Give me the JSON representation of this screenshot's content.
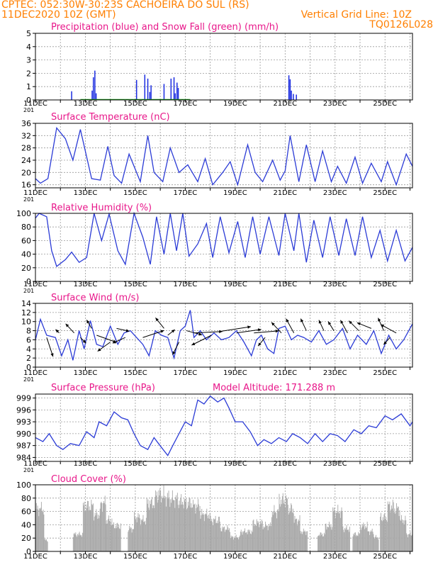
{
  "header": {
    "line1_left": "CPTEC:   052:30W-30:23S   CACHOEIRA DO SUL (RS)",
    "line2_left": "11DEC2020  10Z  (GMT)",
    "line2_right": "Vertical Grid Line: 10Z",
    "line3_right": "TQ0126L028",
    "color": "#ff7f00"
  },
  "colors": {
    "title": "#e8178a",
    "line": "#2b3bd6",
    "precip": "#1a2be0",
    "snow": "#19a319",
    "cloud": "#a8a8a8",
    "grid": "#9a9a9a",
    "arrow": "#000000"
  },
  "x_ticks": [
    "11DEC",
    "13DEC",
    "15DEC",
    "17DEC",
    "19DEC",
    "21DEC",
    "23DEC",
    "25DEC"
  ],
  "stub_label": "201",
  "chart_data": [
    {
      "type": "bar",
      "title": "Precipitation (blue) and Snow Fall (green) (mm/h)",
      "ylim": [
        0,
        5
      ],
      "yticks": [
        0,
        1,
        2,
        3,
        4,
        5
      ],
      "x_unit": "days since 11DEC 10Z",
      "series": [
        {
          "name": "Precipitation",
          "x": [
            1.45,
            2.27,
            2.32,
            2.38,
            2.43,
            4.05,
            4.38,
            4.5,
            4.58,
            4.63,
            5.15,
            5.43,
            5.55,
            5.6,
            5.67,
            5.72,
            10.15,
            10.2,
            10.25,
            10.33,
            10.45
          ],
          "values": [
            0.65,
            0.7,
            1.7,
            2.2,
            0.5,
            1.5,
            1.9,
            1.6,
            0.6,
            1.1,
            1.2,
            1.6,
            1.7,
            0.5,
            1.3,
            0.9,
            1.85,
            1.55,
            0.7,
            0.45,
            0.4
          ]
        },
        {
          "name": "Snow Fall",
          "values": []
        }
      ]
    },
    {
      "type": "line",
      "title": "Surface Temperature (nC)",
      "ylim": [
        15,
        36
      ],
      "yticks": [
        16,
        20,
        24,
        28,
        32,
        36
      ],
      "x": [
        0.0,
        0.2,
        0.5,
        0.85,
        1.2,
        1.5,
        1.8,
        2.25,
        2.6,
        2.9,
        3.15,
        3.45,
        3.75,
        4.2,
        4.5,
        4.75,
        5.1,
        5.4,
        5.75,
        6.1,
        6.5,
        6.8,
        7.1,
        7.5,
        7.8,
        8.1,
        8.5,
        8.8,
        9.1,
        9.5,
        9.8,
        10.0,
        10.2,
        10.55,
        10.85,
        11.2,
        11.5,
        11.85,
        12.1,
        12.45,
        12.8,
        13.1,
        13.45,
        13.85,
        14.1,
        14.45,
        14.85,
        15.1
      ],
      "values": [
        18,
        16.5,
        18,
        34.5,
        31,
        24,
        34,
        18,
        17.5,
        28.5,
        19,
        16.5,
        26,
        17,
        32,
        20,
        17,
        28,
        20,
        22.5,
        17,
        24.5,
        16,
        20,
        23.5,
        16,
        29,
        20,
        17,
        24,
        17.5,
        20.5,
        32,
        17,
        29,
        17,
        27,
        17,
        22,
        16.5,
        25,
        16.5,
        23,
        17,
        23.5,
        16,
        26,
        22
      ]
    },
    {
      "type": "line",
      "title": "Relative Humidity (%)",
      "ylim": [
        0,
        100
      ],
      "yticks": [
        0,
        20,
        40,
        60,
        80,
        100
      ],
      "x": [
        0.0,
        0.15,
        0.45,
        0.65,
        0.85,
        1.2,
        1.45,
        1.75,
        2.05,
        2.35,
        2.65,
        2.95,
        3.3,
        3.6,
        3.95,
        4.3,
        4.6,
        4.85,
        5.15,
        5.4,
        5.65,
        5.9,
        6.15,
        6.5,
        6.85,
        7.1,
        7.4,
        7.75,
        8.1,
        8.4,
        8.7,
        9.0,
        9.35,
        9.75,
        10.0,
        10.35,
        10.55,
        10.85,
        11.15,
        11.5,
        11.8,
        12.15,
        12.45,
        12.8,
        13.1,
        13.45,
        13.8,
        14.1,
        14.45,
        14.8,
        15.1
      ],
      "values": [
        93,
        100,
        95,
        45,
        22,
        32,
        43,
        28,
        35,
        100,
        60,
        99,
        45,
        25,
        100,
        65,
        25,
        95,
        40,
        100,
        45,
        100,
        37,
        55,
        85,
        35,
        95,
        42,
        88,
        35,
        95,
        40,
        95,
        38,
        100,
        45,
        100,
        28,
        90,
        35,
        95,
        38,
        92,
        38,
        95,
        35,
        75,
        30,
        75,
        30,
        50
      ]
    },
    {
      "type": "line",
      "title": "Surface Wind (m/s)",
      "ylim": [
        0,
        14
      ],
      "yticks": [
        0,
        2,
        4,
        6,
        8,
        10,
        12,
        14
      ],
      "x": [
        0.0,
        0.2,
        0.45,
        0.8,
        1.05,
        1.3,
        1.5,
        1.75,
        1.95,
        2.2,
        2.45,
        2.7,
        3.0,
        3.3,
        3.55,
        3.8,
        4.05,
        4.3,
        4.55,
        4.8,
        5.05,
        5.3,
        5.55,
        5.8,
        6.0,
        6.2,
        6.35,
        6.6,
        6.85,
        7.15,
        7.45,
        7.75,
        8.05,
        8.35,
        8.65,
        8.85,
        9.05,
        9.3,
        9.55,
        9.75,
        10.0,
        10.25,
        10.5,
        10.75,
        11.05,
        11.35,
        11.65,
        11.95,
        12.3,
        12.6,
        12.9,
        13.25,
        13.55,
        13.85,
        14.15,
        14.45,
        14.75,
        15.1
      ],
      "values": [
        6,
        10.5,
        7,
        6.5,
        2.5,
        6,
        1.5,
        8,
        4,
        10.2,
        5,
        4.5,
        9,
        5,
        7.5,
        8,
        6.5,
        5,
        2.5,
        8,
        7,
        6.5,
        2,
        8,
        9,
        12.5,
        6.5,
        8,
        6,
        7.5,
        6,
        6.5,
        8,
        5.5,
        2.5,
        6,
        7,
        4,
        3,
        8.5,
        9,
        6,
        7,
        6.5,
        5.5,
        8,
        5,
        6,
        8.5,
        4,
        7,
        5,
        8,
        3,
        7,
        4,
        6,
        9.5
      ],
      "arrows": [
        {
          "x": 0.45,
          "v": 6.5,
          "dx": 9,
          "dy": 27
        },
        {
          "x": 0.95,
          "v": 7.5,
          "dx": -5,
          "dy": -5
        },
        {
          "x": 1.55,
          "v": 7.5,
          "dx": -12,
          "dy": -13
        },
        {
          "x": 1.8,
          "v": 6.5,
          "dx": 8,
          "dy": 8
        },
        {
          "x": 2.25,
          "v": 8.5,
          "dx": -7,
          "dy": -12
        },
        {
          "x": 2.45,
          "v": 7.0,
          "dx": 28,
          "dy": 10
        },
        {
          "x": 3.0,
          "v": 5.5,
          "dx": -18,
          "dy": 13
        },
        {
          "x": 3.25,
          "v": 8.5,
          "dx": 18,
          "dy": 4
        },
        {
          "x": 3.6,
          "v": 6.5,
          "dx": -18,
          "dy": 8
        },
        {
          "x": 4.3,
          "v": 6.5,
          "dx": 30,
          "dy": -10
        },
        {
          "x": 5.15,
          "v": 8.5,
          "dx": -12,
          "dy": -15
        },
        {
          "x": 5.3,
          "v": 7.0,
          "dx": 10,
          "dy": -8
        },
        {
          "x": 5.75,
          "v": 5.5,
          "dx": -9,
          "dy": 18
        },
        {
          "x": 6.05,
          "v": 8.0,
          "dx": 22,
          "dy": 6
        },
        {
          "x": 6.35,
          "v": 7.5,
          "dx": 40,
          "dy": -2
        },
        {
          "x": 7.05,
          "v": 7.0,
          "dx": -28,
          "dy": 14
        },
        {
          "x": 7.35,
          "v": 7.8,
          "dx": 45,
          "dy": -7
        },
        {
          "x": 8.05,
          "v": 7.5,
          "dx": 35,
          "dy": -5
        },
        {
          "x": 8.75,
          "v": 7.5,
          "dx": 35,
          "dy": -3
        },
        {
          "x": 9.2,
          "v": 6.5,
          "dx": -10,
          "dy": 12
        },
        {
          "x": 9.85,
          "v": 7.5,
          "dx": -14,
          "dy": -15
        },
        {
          "x": 10.35,
          "v": 7.5,
          "dx": -11,
          "dy": -20
        },
        {
          "x": 10.85,
          "v": 8.0,
          "dx": -8,
          "dy": -17
        },
        {
          "x": 11.55,
          "v": 8.0,
          "dx": -7,
          "dy": -15
        },
        {
          "x": 11.95,
          "v": 8.0,
          "dx": -8,
          "dy": -13
        },
        {
          "x": 12.5,
          "v": 7.5,
          "dx": -10,
          "dy": -18
        },
        {
          "x": 12.95,
          "v": 8.0,
          "dx": -14,
          "dy": -14
        },
        {
          "x": 13.45,
          "v": 8.5,
          "dx": -20,
          "dy": -8
        },
        {
          "x": 13.95,
          "v": 8.0,
          "dx": -8,
          "dy": -18
        },
        {
          "x": 14.2,
          "v": 6.5,
          "dx": -9,
          "dy": 10
        },
        {
          "x": 14.45,
          "v": 7.5,
          "dx": -22,
          "dy": -12
        }
      ]
    },
    {
      "type": "line",
      "title": "Surface Pressure (hPa)",
      "annotation": "Model Altitude: 171.288  m",
      "ylim": [
        983,
        1000
      ],
      "yticks": [
        984,
        987,
        990,
        993,
        996,
        999
      ],
      "x": [
        0.0,
        0.3,
        0.55,
        0.85,
        1.1,
        1.4,
        1.75,
        2.05,
        2.35,
        2.55,
        2.85,
        3.15,
        3.45,
        3.7,
        3.95,
        4.2,
        4.5,
        4.75,
        5.05,
        5.3,
        5.5,
        5.75,
        6.0,
        6.25,
        6.5,
        6.75,
        7.0,
        7.3,
        7.55,
        7.75,
        8.0,
        8.3,
        8.6,
        8.9,
        9.15,
        9.45,
        9.75,
        10.05,
        10.3,
        10.6,
        10.9,
        11.2,
        11.5,
        11.8,
        12.1,
        12.4,
        12.75,
        13.05,
        13.35,
        13.65,
        14.0,
        14.3,
        14.65,
        15.0,
        15.1
      ],
      "values": [
        989,
        988,
        990,
        987,
        986,
        987.5,
        987,
        990.5,
        989,
        993,
        992,
        995.5,
        994,
        993.5,
        990,
        987,
        986,
        989,
        986.5,
        984.5,
        987,
        990,
        993,
        992,
        998.5,
        997.5,
        999.5,
        998,
        999,
        996.5,
        993,
        993,
        990.5,
        987,
        988.5,
        987.5,
        989,
        988,
        990,
        989,
        987.5,
        990,
        988,
        990,
        989.5,
        988,
        991,
        990,
        992,
        991.5,
        994.5,
        993.5,
        995,
        992,
        993
      ]
    },
    {
      "type": "bar",
      "title": "Cloud Cover (%)",
      "ylim": [
        0,
        100
      ],
      "yticks": [
        0,
        20,
        40,
        60,
        80,
        100
      ],
      "segments": [
        {
          "from": 0.0,
          "to": 0.35,
          "level": 75
        },
        {
          "from": 0.35,
          "to": 0.5,
          "level": 20
        },
        {
          "from": 1.5,
          "to": 1.9,
          "level": 30
        },
        {
          "from": 1.9,
          "to": 2.3,
          "level": 80
        },
        {
          "from": 2.3,
          "to": 2.6,
          "level": 65
        },
        {
          "from": 2.6,
          "to": 2.8,
          "level": 85
        },
        {
          "from": 2.8,
          "to": 3.05,
          "level": 55
        },
        {
          "from": 3.05,
          "to": 3.4,
          "level": 45
        },
        {
          "from": 3.7,
          "to": 3.95,
          "level": 40
        },
        {
          "from": 3.95,
          "to": 4.2,
          "level": 60
        },
        {
          "from": 4.2,
          "to": 4.45,
          "level": 55
        },
        {
          "from": 4.45,
          "to": 4.8,
          "level": 85
        },
        {
          "from": 4.8,
          "to": 5.15,
          "level": 100
        },
        {
          "from": 5.15,
          "to": 5.35,
          "level": 95
        },
        {
          "from": 5.35,
          "to": 5.7,
          "level": 92
        },
        {
          "from": 5.7,
          "to": 5.95,
          "level": 88
        },
        {
          "from": 5.95,
          "to": 6.3,
          "level": 85
        },
        {
          "from": 6.3,
          "to": 6.6,
          "level": 80
        },
        {
          "from": 6.6,
          "to": 7.0,
          "level": 65
        },
        {
          "from": 7.0,
          "to": 7.4,
          "level": 55
        },
        {
          "from": 7.4,
          "to": 7.8,
          "level": 40
        },
        {
          "from": 7.8,
          "to": 8.2,
          "level": 25
        },
        {
          "from": 8.2,
          "to": 8.7,
          "level": 35
        },
        {
          "from": 8.7,
          "to": 9.1,
          "level": 50
        },
        {
          "from": 9.1,
          "to": 9.45,
          "level": 45
        },
        {
          "from": 9.45,
          "to": 9.75,
          "level": 70
        },
        {
          "from": 9.75,
          "to": 10.1,
          "level": 90
        },
        {
          "from": 10.1,
          "to": 10.35,
          "level": 75
        },
        {
          "from": 10.35,
          "to": 10.6,
          "level": 55
        },
        {
          "from": 10.6,
          "to": 10.9,
          "level": 35
        },
        {
          "from": 11.3,
          "to": 11.6,
          "level": 30
        },
        {
          "from": 11.6,
          "to": 11.9,
          "level": 45
        },
        {
          "from": 11.9,
          "to": 12.3,
          "level": 70
        },
        {
          "from": 12.3,
          "to": 12.6,
          "level": 40
        },
        {
          "from": 12.7,
          "to": 13.0,
          "level": 30
        },
        {
          "from": 13.0,
          "to": 13.3,
          "level": 45
        },
        {
          "from": 13.3,
          "to": 13.55,
          "level": 35
        },
        {
          "from": 13.55,
          "to": 13.75,
          "level": 25
        },
        {
          "from": 13.8,
          "to": 14.1,
          "level": 60
        },
        {
          "from": 14.1,
          "to": 14.35,
          "level": 80
        },
        {
          "from": 14.35,
          "to": 14.6,
          "level": 75
        },
        {
          "from": 14.6,
          "to": 14.85,
          "level": 55
        },
        {
          "from": 14.85,
          "to": 15.1,
          "level": 30
        }
      ]
    }
  ]
}
